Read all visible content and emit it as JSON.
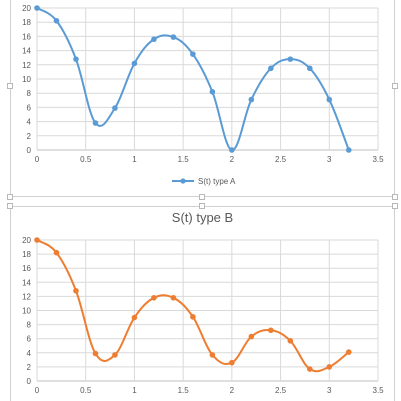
{
  "chart_data": [
    {
      "type": "line",
      "title": "",
      "xlabel": "",
      "ylabel": "",
      "xlim": [
        0,
        3.5
      ],
      "ylim": [
        0,
        20
      ],
      "x_ticks": [
        "0",
        "0.5",
        "1",
        "1.5",
        "2",
        "2.5",
        "3",
        "3.5"
      ],
      "y_ticks": [
        "0",
        "2",
        "4",
        "6",
        "8",
        "10",
        "12",
        "14",
        "16",
        "18",
        "20"
      ],
      "grid": true,
      "legend_position": "bottom",
      "smooth": true,
      "series": [
        {
          "name": "S(t) type A",
          "color": "#5b9bd5",
          "x": [
            0,
            0.2,
            0.4,
            0.6,
            0.8,
            1.0,
            1.2,
            1.4,
            1.6,
            1.8,
            2.0,
            2.2,
            2.4,
            2.6,
            2.8,
            3.0,
            3.2
          ],
          "y": [
            20,
            18.2,
            12.8,
            3.8,
            5.9,
            12.2,
            15.6,
            15.9,
            13.5,
            8.2,
            0,
            7.1,
            11.5,
            12.8,
            11.5,
            7.1,
            0
          ]
        }
      ]
    },
    {
      "type": "line",
      "title": "S(t) type B",
      "xlabel": "",
      "ylabel": "",
      "xlim": [
        0,
        3.5
      ],
      "ylim": [
        0,
        20
      ],
      "x_ticks": [
        "0",
        "0.5",
        "1",
        "1.5",
        "2",
        "2.5",
        "3",
        "3.5"
      ],
      "y_ticks": [
        "0",
        "2",
        "4",
        "6",
        "8",
        "10",
        "12",
        "14",
        "16",
        "18",
        "20"
      ],
      "grid": true,
      "smooth": true,
      "series": [
        {
          "color": "#ed7d31",
          "x": [
            0,
            0.2,
            0.4,
            0.6,
            0.8,
            1.0,
            1.2,
            1.4,
            1.6,
            1.8,
            2.0,
            2.2,
            2.4,
            2.6,
            2.8,
            3.0,
            3.2
          ],
          "y": [
            20,
            18.2,
            12.8,
            3.9,
            3.7,
            9.0,
            11.8,
            11.8,
            9.1,
            3.7,
            2.6,
            6.3,
            7.2,
            5.7,
            1.7,
            2.0,
            4.1
          ]
        }
      ]
    }
  ]
}
